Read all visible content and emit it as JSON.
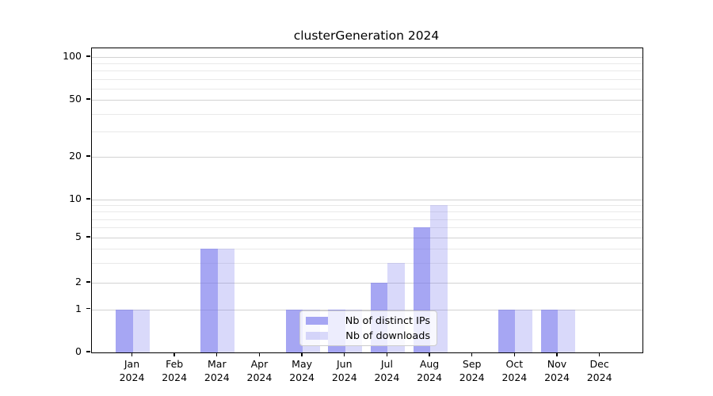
{
  "title": "clusterGeneration 2024",
  "chart_data": {
    "type": "bar",
    "title": "clusterGeneration 2024",
    "categories": [
      "Jan",
      "Feb",
      "Mar",
      "Apr",
      "May",
      "Jun",
      "Jul",
      "Aug",
      "Sep",
      "Oct",
      "Nov",
      "Dec"
    ],
    "year": "2024",
    "series": [
      {
        "name": "Nb of distinct IPs",
        "values": [
          1,
          0,
          4,
          0,
          1,
          1,
          2,
          6,
          0,
          1,
          1,
          0
        ]
      },
      {
        "name": "Nb of downloads",
        "values": [
          1,
          0,
          4,
          0,
          1,
          1,
          3,
          9,
          0,
          1,
          1,
          0
        ]
      }
    ],
    "xlabel": "",
    "ylabel": "",
    "y_axis": {
      "scale": "log-like",
      "tick_values": [
        0,
        1,
        2,
        5,
        10,
        20,
        50,
        100
      ],
      "tick_labels": [
        "0",
        "1",
        "2",
        "5",
        "10",
        "20",
        "50",
        "100"
      ],
      "minor_gridline_values": [
        3,
        4,
        6,
        7,
        8,
        9,
        30,
        40,
        60,
        70,
        80,
        90
      ],
      "ylim": [
        0,
        110
      ]
    },
    "grid": true,
    "legend_position": "inside lower-center"
  },
  "colors": {
    "bar_distinct_ips": "rgba(118,118,236,0.65)",
    "bar_downloads": "rgba(118,118,236,0.28)",
    "grid_major": "#d2d2d2",
    "grid_minor": "#e9e9e9",
    "axis": "#000000"
  }
}
